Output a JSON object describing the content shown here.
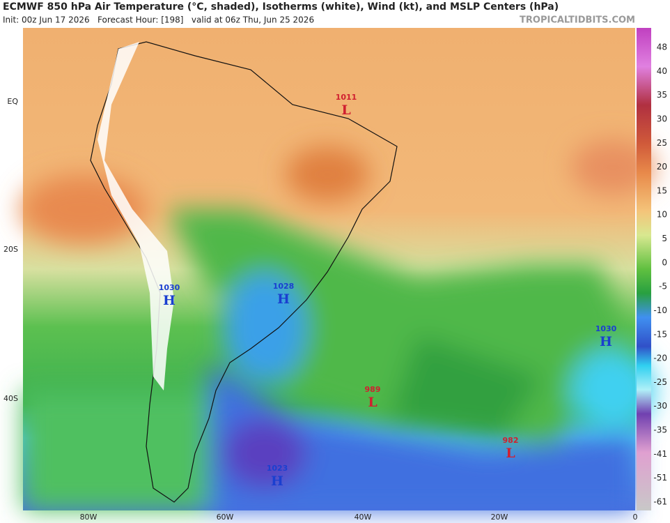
{
  "header": {
    "title": "ECMWF 850 hPa Air Temperature (°C, shaded), Isotherms (white), Wind (kt), and MSLP Centers (hPa)",
    "subtitle": "Init: 00z Jun 17 2026   Forecast Hour: [198]   valid at 06z Thu, Jun 25 2026",
    "source": "TROPICALTIDBITS.COM"
  },
  "map": {
    "lat_labels": [
      "EQ",
      "20S",
      "40S"
    ],
    "lon_labels": [
      "80W",
      "60W",
      "40W",
      "20W",
      "0"
    ],
    "pressure_centers": [
      {
        "value": 1011,
        "type": "L"
      },
      {
        "value": 1030,
        "type": "H"
      },
      {
        "value": 1028,
        "type": "H"
      },
      {
        "value": 1030,
        "type": "H"
      },
      {
        "value": 989,
        "type": "L"
      },
      {
        "value": 982,
        "type": "L"
      },
      {
        "value": 1023,
        "type": "H"
      }
    ]
  },
  "colorbar": {
    "labels": [
      48,
      40,
      35,
      30,
      25,
      20,
      15,
      10,
      5,
      0,
      -5,
      -10,
      -15,
      -20,
      -25,
      -30,
      -35,
      -41,
      -51,
      -61
    ]
  }
}
